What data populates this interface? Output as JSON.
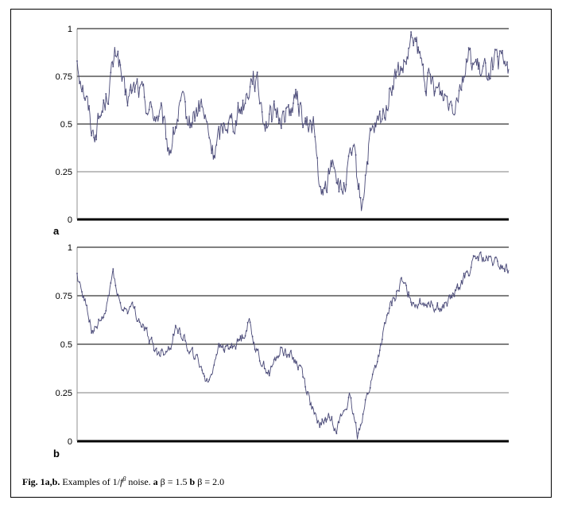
{
  "figure": {
    "caption": {
      "label": "Fig. 1a,b.",
      "text_pre": " Examples of 1/",
      "f": "f",
      "beta_sup": "β",
      "text_mid": " noise. ",
      "a": "a",
      "beta_a": " β = 1.5 ",
      "b": "b",
      "beta_b": " β = 2.0"
    }
  },
  "chart_data": [
    {
      "type": "line",
      "panel": "a",
      "ylim": [
        0,
        1
      ],
      "yticks": [
        "0",
        "0.25",
        "0.5",
        "0.75",
        "1"
      ],
      "grid": true,
      "line_color": "#4a4a78",
      "n_points": 540,
      "anchors": [
        [
          0,
          0.84
        ],
        [
          10,
          0.66
        ],
        [
          20,
          0.45
        ],
        [
          30,
          0.55
        ],
        [
          40,
          0.7
        ],
        [
          50,
          0.9
        ],
        [
          60,
          0.62
        ],
        [
          75,
          0.7
        ],
        [
          90,
          0.58
        ],
        [
          105,
          0.53
        ],
        [
          115,
          0.36
        ],
        [
          130,
          0.6
        ],
        [
          140,
          0.5
        ],
        [
          155,
          0.6
        ],
        [
          170,
          0.34
        ],
        [
          185,
          0.52
        ],
        [
          195,
          0.52
        ],
        [
          210,
          0.63
        ],
        [
          220,
          0.78
        ],
        [
          235,
          0.52
        ],
        [
          250,
          0.55
        ],
        [
          260,
          0.55
        ],
        [
          275,
          0.63
        ],
        [
          285,
          0.48
        ],
        [
          295,
          0.5
        ],
        [
          305,
          0.08
        ],
        [
          320,
          0.33
        ],
        [
          330,
          0.12
        ],
        [
          345,
          0.35
        ],
        [
          355,
          0.06
        ],
        [
          365,
          0.4
        ],
        [
          380,
          0.52
        ],
        [
          395,
          0.73
        ],
        [
          410,
          0.8
        ],
        [
          420,
          0.95
        ],
        [
          435,
          0.73
        ],
        [
          450,
          0.68
        ],
        [
          470,
          0.62
        ],
        [
          490,
          0.86
        ],
        [
          505,
          0.75
        ],
        [
          520,
          0.82
        ],
        [
          540,
          0.8
        ]
      ],
      "noise": 0.055
    },
    {
      "type": "line",
      "panel": "b",
      "ylim": [
        0,
        1
      ],
      "yticks": [
        "0",
        "0.25",
        "0.5",
        "0.75",
        "1"
      ],
      "grid": true,
      "line_color": "#4a4a78",
      "n_points": 540,
      "anchors": [
        [
          0,
          0.86
        ],
        [
          10,
          0.72
        ],
        [
          20,
          0.55
        ],
        [
          35,
          0.65
        ],
        [
          45,
          0.88
        ],
        [
          55,
          0.68
        ],
        [
          70,
          0.68
        ],
        [
          85,
          0.57
        ],
        [
          100,
          0.45
        ],
        [
          115,
          0.48
        ],
        [
          125,
          0.6
        ],
        [
          140,
          0.48
        ],
        [
          155,
          0.38
        ],
        [
          165,
          0.3
        ],
        [
          175,
          0.48
        ],
        [
          190,
          0.48
        ],
        [
          205,
          0.53
        ],
        [
          215,
          0.62
        ],
        [
          225,
          0.45
        ],
        [
          240,
          0.35
        ],
        [
          255,
          0.48
        ],
        [
          265,
          0.45
        ],
        [
          280,
          0.38
        ],
        [
          290,
          0.22
        ],
        [
          300,
          0.08
        ],
        [
          315,
          0.12
        ],
        [
          325,
          0.08
        ],
        [
          340,
          0.22
        ],
        [
          350,
          0.03
        ],
        [
          360,
          0.2
        ],
        [
          375,
          0.42
        ],
        [
          390,
          0.68
        ],
        [
          405,
          0.82
        ],
        [
          420,
          0.72
        ],
        [
          440,
          0.72
        ],
        [
          455,
          0.68
        ],
        [
          470,
          0.75
        ],
        [
          485,
          0.85
        ],
        [
          500,
          0.95
        ],
        [
          520,
          0.92
        ],
        [
          540,
          0.88
        ]
      ],
      "noise": 0.025
    }
  ],
  "panel_labels": {
    "a": "a",
    "b": "b"
  }
}
